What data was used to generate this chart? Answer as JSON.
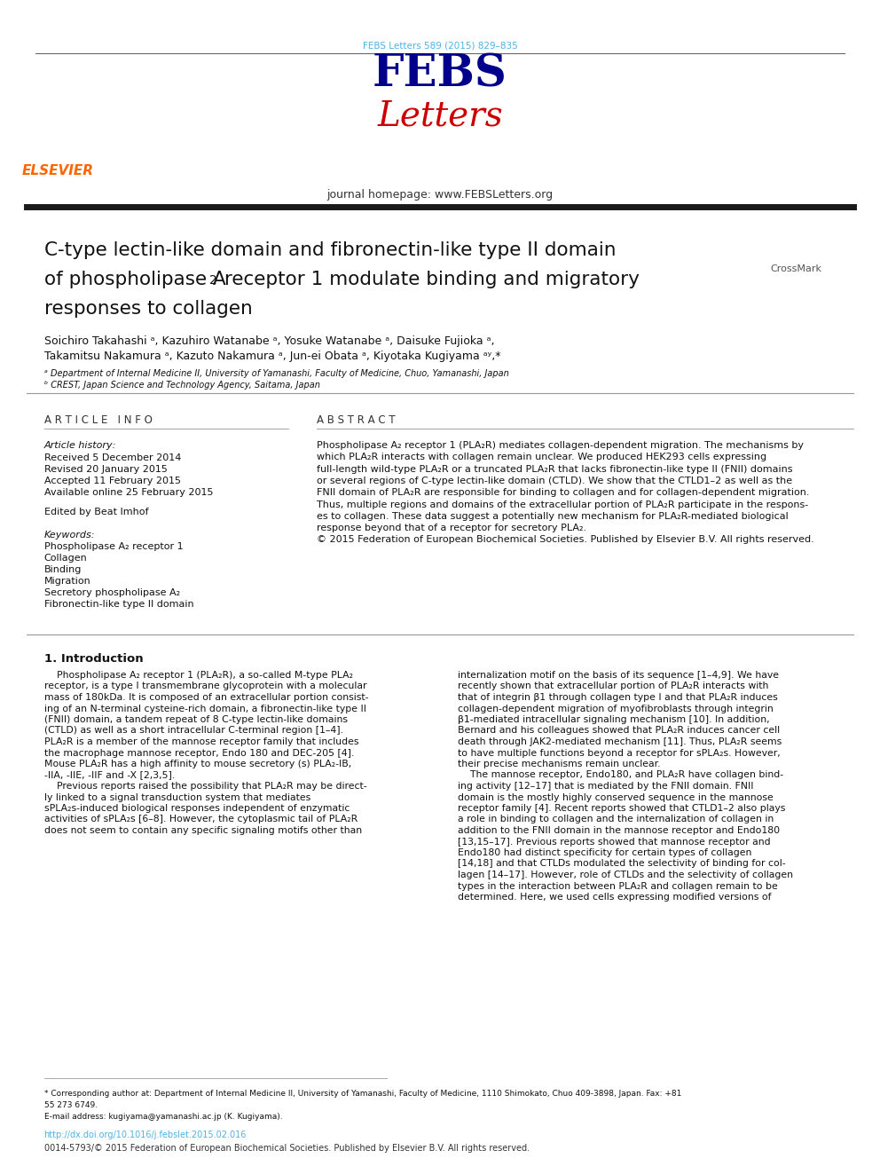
{
  "page_width": 9.92,
  "page_height": 13.23,
  "background_color": "#ffffff",
  "journal_ref": "FEBS Letters 589 (2015) 829–835",
  "journal_ref_color": "#4db3e6",
  "journal_homepage": "journal homepage: www.FEBSLetters.org",
  "elsevier_color": "#ff6600",
  "title_line1": "C-type lectin-like domain and fibronectin-like type II domain",
  "title_line2": "of phospholipase A",
  "title_line2_sub": "2",
  "title_line2_rest": " receptor 1 modulate binding and migratory",
  "title_line3": "responses to collagen",
  "authors": "Soichiro Takahashi ᵃ, Kazuhiro Watanabe ᵃ, Yosuke Watanabe ᵃ, Daisuke Fujioka ᵃ,",
  "authors2": "Takamitsu Nakamura ᵃ, Kazuto Nakamura ᵃ, Jun-ei Obata ᵃ, Kiyotaka Kugiyama ᵃʸ,*",
  "affil_a": "ᵃ Department of Internal Medicine II, University of Yamanashi, Faculty of Medicine, Chuo, Yamanashi, Japan",
  "affil_b": "ᵇ CREST, Japan Science and Technology Agency, Saitama, Japan",
  "article_info_header": "A R T I C L E   I N F O",
  "abstract_header": "A B S T R A C T",
  "article_history_label": "Article history:",
  "received": "Received 5 December 2014",
  "revised": "Revised 20 January 2015",
  "accepted": "Accepted 11 February 2015",
  "available": "Available online 25 February 2015",
  "edited_by": "Edited by Beat Imhof",
  "keywords_label": "Keywords:",
  "keywords": [
    "Phospholipase A₂ receptor 1",
    "Collagen",
    "Binding",
    "Migration",
    "Secretory phospholipase A₂",
    "Fibronectin-like type II domain"
  ],
  "abstract_lines": [
    "Phospholipase A₂ receptor 1 (PLA₂R) mediates collagen-dependent migration. The mechanisms by",
    "which PLA₂R interacts with collagen remain unclear. We produced HEK293 cells expressing",
    "full-length wild-type PLA₂R or a truncated PLA₂R that lacks fibronectin-like type II (FNII) domains",
    "or several regions of C-type lectin-like domain (CTLD). We show that the CTLD1–2 as well as the",
    "FNII domain of PLA₂R are responsible for binding to collagen and for collagen-dependent migration.",
    "Thus, multiple regions and domains of the extracellular portion of PLA₂R participate in the respons-",
    "es to collagen. These data suggest a potentially new mechanism for PLA₂R-mediated biological",
    "response beyond that of a receptor for secretory PLA₂.",
    "© 2015 Federation of European Biochemical Societies. Published by Elsevier B.V. All rights reserved."
  ],
  "intro_header": "1. Introduction",
  "intro_col1_lines": [
    "    Phospholipase A₂ receptor 1 (PLA₂R), a so-called M-type PLA₂",
    "receptor, is a type I transmembrane glycoprotein with a molecular",
    "mass of 180kDa. It is composed of an extracellular portion consist-",
    "ing of an N-terminal cysteine-rich domain, a fibronectin-like type II",
    "(FNII) domain, a tandem repeat of 8 C-type lectin-like domains",
    "(CTLD) as well as a short intracellular C-terminal region [1–4].",
    "PLA₂R is a member of the mannose receptor family that includes",
    "the macrophage mannose receptor, Endo 180 and DEC-205 [4].",
    "Mouse PLA₂R has a high affinity to mouse secretory (s) PLA₂-IB,",
    "-IIA, -IIE, -IIF and -X [2,3,5].",
    "    Previous reports raised the possibility that PLA₂R may be direct-",
    "ly linked to a signal transduction system that mediates",
    "sPLA₂s-induced biological responses independent of enzymatic",
    "activities of sPLA₂s [6–8]. However, the cytoplasmic tail of PLA₂R",
    "does not seem to contain any specific signaling motifs other than"
  ],
  "intro_col2_lines": [
    "internalization motif on the basis of its sequence [1–4,9]. We have",
    "recently shown that extracellular portion of PLA₂R interacts with",
    "that of integrin β1 through collagen type I and that PLA₂R induces",
    "collagen-dependent migration of myofibroblasts through integrin",
    "β1-mediated intracellular signaling mechanism [10]. In addition,",
    "Bernard and his colleagues showed that PLA₂R induces cancer cell",
    "death through JAK2-mediated mechanism [11]. Thus, PLA₂R seems",
    "to have multiple functions beyond a receptor for sPLA₂s. However,",
    "their precise mechanisms remain unclear.",
    "    The mannose receptor, Endo180, and PLA₂R have collagen bind-",
    "ing activity [12–17] that is mediated by the FNII domain. FNII",
    "domain is the mostly highly conserved sequence in the mannose",
    "receptor family [4]. Recent reports showed that CTLD1–2 also plays",
    "a role in binding to collagen and the internalization of collagen in",
    "addition to the FNII domain in the mannose receptor and Endo180",
    "[13,15–17]. Previous reports showed that mannose receptor and",
    "Endo180 had distinct specificity for certain types of collagen",
    "[14,18] and that CTLDs modulated the selectivity of binding for col-",
    "lagen [14–17]. However, role of CTLDs and the selectivity of collagen",
    "types in the interaction between PLA₂R and collagen remain to be",
    "determined. Here, we used cells expressing modified versions of"
  ],
  "footnote_star": "* Corresponding author at: Department of Internal Medicine II, University of Yamanashi, Faculty of Medicine, 1110 Shimokato, Chuo 409-3898, Japan. Fax: +81",
  "footnote_star2": "55 273 6749.",
  "footnote_email": "E-mail address: kugiyama@yamanashi.ac.jp (K. Kugiyama).",
  "doi_text": "http://dx.doi.org/10.1016/j.febslet.2015.02.016",
  "issn_text": "0014-5793/© 2015 Federation of European Biochemical Societies. Published by Elsevier B.V. All rights reserved.",
  "thick_line_color": "#1a1a1a"
}
